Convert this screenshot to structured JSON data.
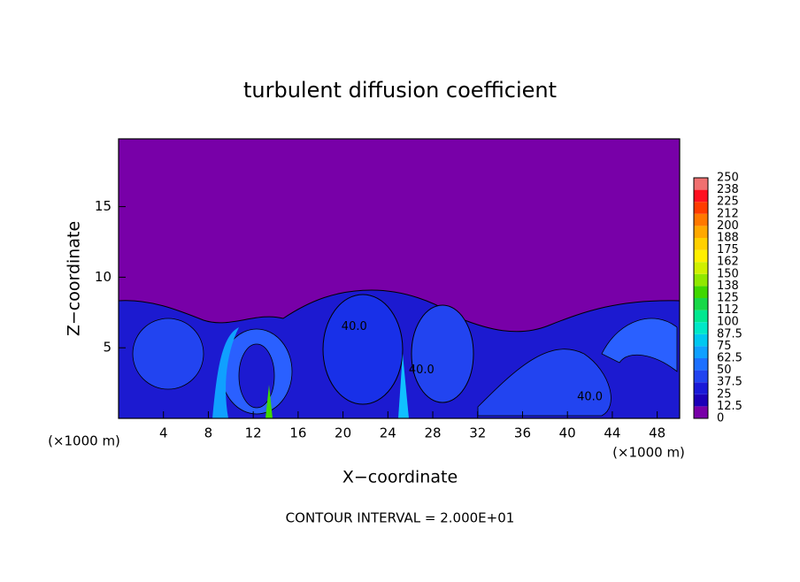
{
  "chart_data": {
    "type": "contour",
    "title": "turbulent diffusion coefficient",
    "xlabel": "X−coordinate",
    "ylabel": "Z−coordinate",
    "xunit": "(×1000 m)",
    "footer": "CONTOUR INTERVAL = 2.000E+01",
    "xlim": [
      0,
      50
    ],
    "ylim": [
      0,
      19.8
    ],
    "xticks": [
      4,
      8,
      12,
      16,
      20,
      24,
      28,
      32,
      36,
      40,
      44,
      48
    ],
    "yticks": [
      5,
      10,
      15
    ],
    "annotations": [
      {
        "text": "40.0",
        "x": 21,
        "y": 6.5
      },
      {
        "text": "40.0",
        "x": 27,
        "y": 3.4
      },
      {
        "text": "40.0",
        "x": 42,
        "y": 1.5
      }
    ],
    "colorbar": {
      "levels": [
        0,
        12.5,
        25,
        37.5,
        50,
        62.5,
        75,
        87.5,
        100,
        112,
        125,
        138,
        150,
        162,
        175,
        188,
        200,
        212,
        225,
        238,
        250
      ],
      "colors": [
        "#7800a8",
        "#1c00b8",
        "#1a1ad8",
        "#2244f0",
        "#1c70ff",
        "#10a0ff",
        "#00c8f0",
        "#00e8c8",
        "#00e890",
        "#18d848",
        "#40d800",
        "#90e800",
        "#d0f000",
        "#fff000",
        "#ffd000",
        "#ffa800",
        "#ff7800",
        "#ff3c00",
        "#ff1020",
        "#f07070"
      ]
    }
  }
}
